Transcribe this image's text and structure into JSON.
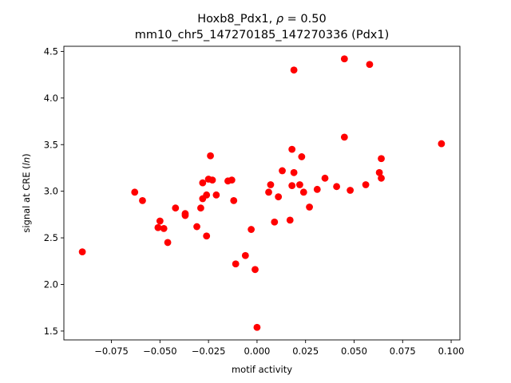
{
  "chart_data": {
    "type": "scatter",
    "title_line1": "Hoxb8_Pdx1, ρ = 0.50",
    "title_line2": "mm10_chr5_147270185_147270336 (Pdx1)",
    "xlabel": "motif activity",
    "ylabel": "signal at CRE (ln)",
    "xlim": [
      -0.0995,
      0.1045
    ],
    "ylim": [
      1.405,
      4.555
    ],
    "xticks": [
      -0.075,
      -0.05,
      -0.025,
      0.0,
      0.025,
      0.05,
      0.075,
      0.1
    ],
    "xtick_labels": [
      "−0.075",
      "−0.050",
      "−0.025",
      "0.000",
      "0.025",
      "0.050",
      "0.075",
      "0.100"
    ],
    "yticks": [
      1.5,
      2.0,
      2.5,
      3.0,
      3.5,
      4.0,
      4.5
    ],
    "ytick_labels": [
      "1.5",
      "2.0",
      "2.5",
      "3.0",
      "3.5",
      "4.0",
      "4.5"
    ],
    "grid": false,
    "marker_color": "#ff0000",
    "points": [
      {
        "x": -0.09,
        "y": 2.35
      },
      {
        "x": -0.063,
        "y": 2.99
      },
      {
        "x": -0.059,
        "y": 2.9
      },
      {
        "x": -0.051,
        "y": 2.61
      },
      {
        "x": -0.05,
        "y": 2.68
      },
      {
        "x": -0.048,
        "y": 2.6
      },
      {
        "x": -0.046,
        "y": 2.45
      },
      {
        "x": -0.042,
        "y": 2.82
      },
      {
        "x": -0.037,
        "y": 2.76
      },
      {
        "x": -0.037,
        "y": 2.74
      },
      {
        "x": -0.031,
        "y": 2.62
      },
      {
        "x": -0.029,
        "y": 2.82
      },
      {
        "x": -0.028,
        "y": 3.09
      },
      {
        "x": -0.028,
        "y": 2.92
      },
      {
        "x": -0.026,
        "y": 2.52
      },
      {
        "x": -0.026,
        "y": 2.96
      },
      {
        "x": -0.025,
        "y": 3.13
      },
      {
        "x": -0.024,
        "y": 3.38
      },
      {
        "x": -0.023,
        "y": 3.12
      },
      {
        "x": -0.021,
        "y": 2.96
      },
      {
        "x": -0.015,
        "y": 3.11
      },
      {
        "x": -0.013,
        "y": 3.12
      },
      {
        "x": -0.012,
        "y": 2.9
      },
      {
        "x": -0.011,
        "y": 2.22
      },
      {
        "x": -0.006,
        "y": 2.31
      },
      {
        "x": -0.003,
        "y": 2.59
      },
      {
        "x": -0.001,
        "y": 2.16
      },
      {
        "x": 0.0,
        "y": 1.54
      },
      {
        "x": 0.006,
        "y": 2.99
      },
      {
        "x": 0.007,
        "y": 3.07
      },
      {
        "x": 0.009,
        "y": 2.67
      },
      {
        "x": 0.011,
        "y": 2.94
      },
      {
        "x": 0.013,
        "y": 3.22
      },
      {
        "x": 0.017,
        "y": 2.69
      },
      {
        "x": 0.018,
        "y": 3.06
      },
      {
        "x": 0.018,
        "y": 3.45
      },
      {
        "x": 0.019,
        "y": 3.2
      },
      {
        "x": 0.019,
        "y": 4.3
      },
      {
        "x": 0.022,
        "y": 3.07
      },
      {
        "x": 0.023,
        "y": 3.37
      },
      {
        "x": 0.024,
        "y": 2.99
      },
      {
        "x": 0.027,
        "y": 2.83
      },
      {
        "x": 0.031,
        "y": 3.02
      },
      {
        "x": 0.035,
        "y": 3.14
      },
      {
        "x": 0.041,
        "y": 3.05
      },
      {
        "x": 0.045,
        "y": 3.58
      },
      {
        "x": 0.045,
        "y": 4.42
      },
      {
        "x": 0.048,
        "y": 3.01
      },
      {
        "x": 0.056,
        "y": 3.07
      },
      {
        "x": 0.058,
        "y": 4.36
      },
      {
        "x": 0.063,
        "y": 3.2
      },
      {
        "x": 0.064,
        "y": 3.14
      },
      {
        "x": 0.064,
        "y": 3.35
      },
      {
        "x": 0.095,
        "y": 3.51
      }
    ]
  }
}
